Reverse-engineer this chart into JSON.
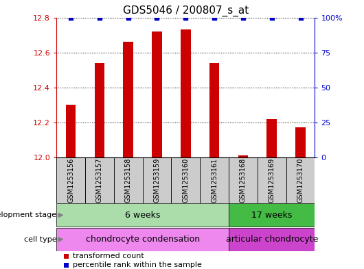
{
  "title": "GDS5046 / 200807_s_at",
  "samples": [
    "GSM1253156",
    "GSM1253157",
    "GSM1253158",
    "GSM1253159",
    "GSM1253160",
    "GSM1253161",
    "GSM1253168",
    "GSM1253169",
    "GSM1253170"
  ],
  "transformed_count": [
    12.3,
    12.54,
    12.66,
    12.72,
    12.73,
    12.54,
    12.01,
    12.22,
    12.17
  ],
  "percentile_rank": [
    100,
    100,
    100,
    100,
    100,
    100,
    100,
    100,
    100
  ],
  "ylim_left": [
    12.0,
    12.8
  ],
  "ylim_right": [
    0,
    100
  ],
  "yticks_left": [
    12.0,
    12.2,
    12.4,
    12.6,
    12.8
  ],
  "yticks_right": [
    0,
    25,
    50,
    75,
    100
  ],
  "bar_color": "#cc0000",
  "dot_color": "#0000cc",
  "dev_stage_groups": [
    {
      "label": "6 weeks",
      "start": 0,
      "end": 6,
      "color": "#aaddaa"
    },
    {
      "label": "17 weeks",
      "start": 6,
      "end": 9,
      "color": "#44bb44"
    }
  ],
  "cell_type_groups": [
    {
      "label": "chondrocyte condensation",
      "start": 0,
      "end": 6,
      "color": "#ee88ee"
    },
    {
      "label": "articular chondrocyte",
      "start": 6,
      "end": 9,
      "color": "#cc44cc"
    }
  ],
  "legend_items": [
    {
      "color": "#cc0000",
      "label": "transformed count"
    },
    {
      "color": "#0000cc",
      "label": "percentile rank within the sample"
    }
  ],
  "sample_box_color": "#cccccc",
  "left_label_color": "#cc0000",
  "right_label_color": "#0000cc"
}
